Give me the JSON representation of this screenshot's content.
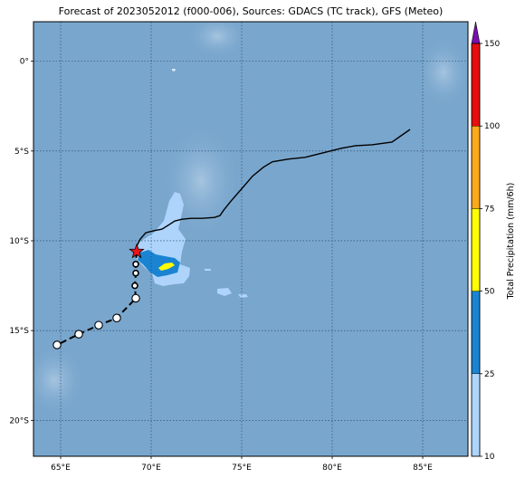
{
  "title": "Forecast of 2023052012 (f000-006), Sources: GDACS (TC track), GFS (Meteo)",
  "map": {
    "lon_range": [
      63.5,
      87.5
    ],
    "lat_range": [
      -22.0,
      2.2
    ],
    "x_ticks": [
      {
        "value": 65,
        "label": "65°E"
      },
      {
        "value": 70,
        "label": "70°E"
      },
      {
        "value": 75,
        "label": "75°E"
      },
      {
        "value": 80,
        "label": "80°E"
      },
      {
        "value": 85,
        "label": "85°E"
      }
    ],
    "y_ticks": [
      {
        "value": 0,
        "label": "0°"
      },
      {
        "value": -5,
        "label": "5°S"
      },
      {
        "value": -10,
        "label": "10°S"
      },
      {
        "value": -15,
        "label": "15°S"
      },
      {
        "value": -20,
        "label": "20°S"
      }
    ],
    "grid": true,
    "ocean_color": "#79a6cd",
    "past_track": [
      [
        84.3,
        -3.8
      ],
      [
        83.3,
        -4.5
      ],
      [
        82.2,
        -4.65
      ],
      [
        81.3,
        -4.7
      ],
      [
        80.5,
        -4.85
      ],
      [
        79.5,
        -5.1
      ],
      [
        78.5,
        -5.35
      ],
      [
        77.6,
        -5.45
      ],
      [
        76.7,
        -5.6
      ],
      [
        76.2,
        -5.9
      ],
      [
        75.6,
        -6.4
      ],
      [
        75.0,
        -7.1
      ],
      [
        74.4,
        -7.8
      ],
      [
        74.0,
        -8.3
      ],
      [
        73.8,
        -8.6
      ],
      [
        73.5,
        -8.7
      ],
      [
        72.8,
        -8.75
      ],
      [
        72.2,
        -8.75
      ],
      [
        71.7,
        -8.8
      ],
      [
        71.3,
        -8.9
      ],
      [
        71.0,
        -9.1
      ],
      [
        70.6,
        -9.35
      ],
      [
        70.1,
        -9.45
      ],
      [
        69.7,
        -9.55
      ],
      [
        69.4,
        -9.9
      ],
      [
        69.2,
        -10.3
      ],
      [
        69.2,
        -10.6
      ]
    ],
    "current_position": [
      69.2,
      -10.6
    ],
    "forecast_track": [
      [
        69.2,
        -10.6
      ],
      [
        69.15,
        -11.3
      ],
      [
        69.15,
        -11.8
      ],
      [
        69.1,
        -12.5
      ],
      [
        69.15,
        -13.2
      ],
      [
        68.1,
        -14.3
      ],
      [
        67.1,
        -14.7
      ],
      [
        66.0,
        -15.2
      ],
      [
        64.8,
        -15.8
      ]
    ],
    "forecast_points": [
      {
        "lon": 69.15,
        "lat": -11.3,
        "size": "small"
      },
      {
        "lon": 69.15,
        "lat": -11.8,
        "size": "small"
      },
      {
        "lon": 69.1,
        "lat": -12.5,
        "size": "small"
      },
      {
        "lon": 69.15,
        "lat": -13.2,
        "size": "large"
      },
      {
        "lon": 68.1,
        "lat": -14.3,
        "size": "large"
      },
      {
        "lon": 67.1,
        "lat": -14.7,
        "size": "large"
      },
      {
        "lon": 66.0,
        "lat": -15.2,
        "size": "large"
      },
      {
        "lon": 64.8,
        "lat": -15.8,
        "size": "large"
      }
    ],
    "precip_colors": [
      "#aed4fc",
      "#1a84d2",
      "#fdfd06",
      "#fba81c",
      "#e60e0e",
      "#7a0fae"
    ]
  },
  "colorbar": {
    "label": "Total Precipitation (mm/6h)",
    "ticks": [
      "10",
      "25",
      "50",
      "75",
      "100",
      "150"
    ],
    "colors": [
      "#aed4fc",
      "#1a84d2",
      "#fdfd06",
      "#fba81c",
      "#e60e0e"
    ],
    "extend_color": "#7a0fae"
  }
}
